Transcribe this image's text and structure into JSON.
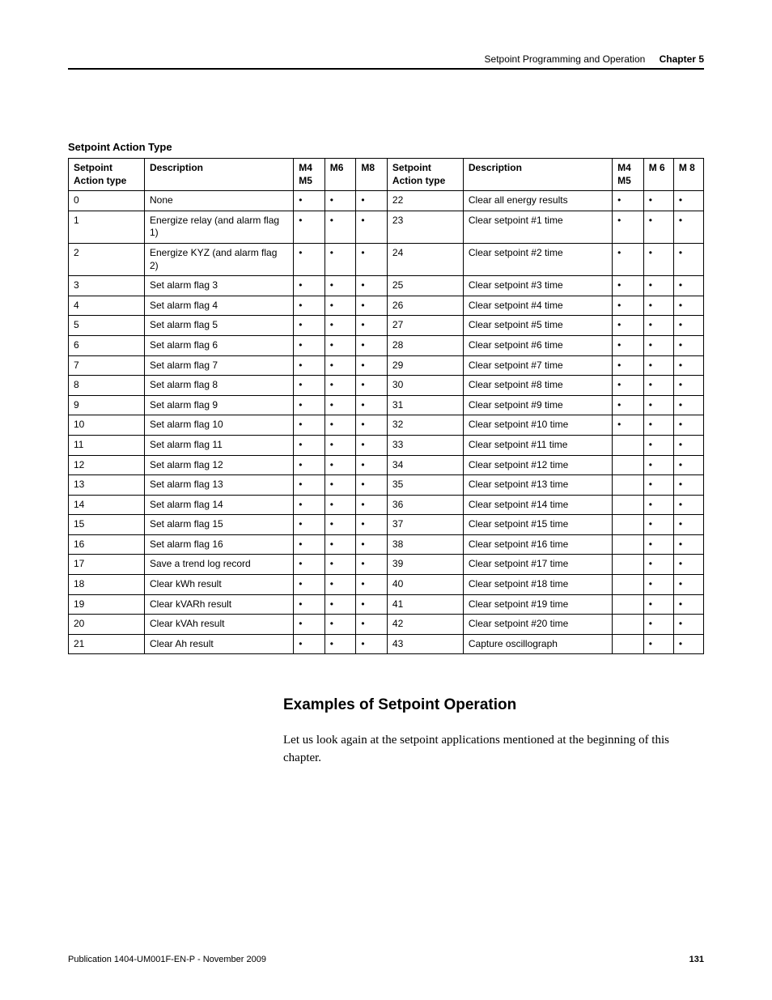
{
  "header": {
    "running_title": "Setpoint Programming and Operation",
    "chapter_label": "Chapter 5"
  },
  "table": {
    "title": "Setpoint Action Type",
    "columns": {
      "code_a": "Setpoint Action type",
      "desc_a": "Description",
      "m4m5_a": "M4 M5",
      "m6_a": "M6",
      "m8_a": "M8",
      "code_b": "Setpoint Action type",
      "desc_b": "Description",
      "m4m5_b": "M4 M5",
      "m6_b": "M 6",
      "m8_b": "M 8"
    },
    "rows": [
      {
        "a_code": "0",
        "a_desc": "None",
        "a_m4m5": "•",
        "a_m6": "•",
        "a_m8": "•",
        "b_code": "22",
        "b_desc": "Clear all energy results",
        "b_m4m5": "•",
        "b_m6": "•",
        "b_m8": "•"
      },
      {
        "a_code": "1",
        "a_desc": "Energize relay (and alarm flag 1)",
        "a_m4m5": "•",
        "a_m6": "•",
        "a_m8": "•",
        "b_code": "23",
        "b_desc": "Clear setpoint #1 time",
        "b_m4m5": "•",
        "b_m6": "•",
        "b_m8": "•"
      },
      {
        "a_code": "2",
        "a_desc": "Energize KYZ (and alarm flag 2)",
        "a_m4m5": "•",
        "a_m6": "•",
        "a_m8": "•",
        "b_code": "24",
        "b_desc": "Clear setpoint #2 time",
        "b_m4m5": "•",
        "b_m6": "•",
        "b_m8": "•"
      },
      {
        "a_code": "3",
        "a_desc": "Set alarm flag 3",
        "a_m4m5": "•",
        "a_m6": "•",
        "a_m8": "•",
        "b_code": "25",
        "b_desc": "Clear setpoint #3 time",
        "b_m4m5": "•",
        "b_m6": "•",
        "b_m8": "•"
      },
      {
        "a_code": "4",
        "a_desc": "Set alarm flag 4",
        "a_m4m5": "•",
        "a_m6": "•",
        "a_m8": "•",
        "b_code": "26",
        "b_desc": "Clear setpoint #4 time",
        "b_m4m5": "•",
        "b_m6": "•",
        "b_m8": "•"
      },
      {
        "a_code": "5",
        "a_desc": "Set alarm flag 5",
        "a_m4m5": "•",
        "a_m6": "•",
        "a_m8": "•",
        "b_code": "27",
        "b_desc": "Clear setpoint #5 time",
        "b_m4m5": "•",
        "b_m6": "•",
        "b_m8": "•"
      },
      {
        "a_code": "6",
        "a_desc": "Set alarm flag 6",
        "a_m4m5": "•",
        "a_m6": "•",
        "a_m8": "•",
        "b_code": "28",
        "b_desc": "Clear setpoint #6 time",
        "b_m4m5": "•",
        "b_m6": "•",
        "b_m8": "•"
      },
      {
        "a_code": "7",
        "a_desc": "Set alarm flag 7",
        "a_m4m5": "•",
        "a_m6": "•",
        "a_m8": "•",
        "b_code": "29",
        "b_desc": "Clear setpoint #7 time",
        "b_m4m5": "•",
        "b_m6": "•",
        "b_m8": "•"
      },
      {
        "a_code": "8",
        "a_desc": "Set alarm flag 8",
        "a_m4m5": "•",
        "a_m6": "•",
        "a_m8": "•",
        "b_code": "30",
        "b_desc": "Clear setpoint #8 time",
        "b_m4m5": "•",
        "b_m6": "•",
        "b_m8": "•"
      },
      {
        "a_code": "9",
        "a_desc": "Set alarm flag 9",
        "a_m4m5": "•",
        "a_m6": "•",
        "a_m8": "•",
        "b_code": "31",
        "b_desc": "Clear setpoint #9 time",
        "b_m4m5": "•",
        "b_m6": "•",
        "b_m8": "•"
      },
      {
        "a_code": "10",
        "a_desc": "Set alarm flag 10",
        "a_m4m5": "•",
        "a_m6": "•",
        "a_m8": "•",
        "b_code": "32",
        "b_desc": "Clear setpoint #10 time",
        "b_m4m5": "•",
        "b_m6": "•",
        "b_m8": "•"
      },
      {
        "a_code": "11",
        "a_desc": "Set alarm flag 11",
        "a_m4m5": "•",
        "a_m6": "•",
        "a_m8": "•",
        "b_code": "33",
        "b_desc": "Clear setpoint #11 time",
        "b_m4m5": "",
        "b_m6": "•",
        "b_m8": "•"
      },
      {
        "a_code": "12",
        "a_desc": "Set alarm flag 12",
        "a_m4m5": "•",
        "a_m6": "•",
        "a_m8": "•",
        "b_code": "34",
        "b_desc": "Clear setpoint #12 time",
        "b_m4m5": "",
        "b_m6": "•",
        "b_m8": "•"
      },
      {
        "a_code": "13",
        "a_desc": "Set alarm flag 13",
        "a_m4m5": "•",
        "a_m6": "•",
        "a_m8": "•",
        "b_code": "35",
        "b_desc": "Clear setpoint #13 time",
        "b_m4m5": "",
        "b_m6": "•",
        "b_m8": "•"
      },
      {
        "a_code": "14",
        "a_desc": "Set alarm flag 14",
        "a_m4m5": "•",
        "a_m6": "•",
        "a_m8": "•",
        "b_code": "36",
        "b_desc": "Clear setpoint #14 time",
        "b_m4m5": "",
        "b_m6": "•",
        "b_m8": "•"
      },
      {
        "a_code": "15",
        "a_desc": "Set alarm flag 15",
        "a_m4m5": "•",
        "a_m6": "•",
        "a_m8": "•",
        "b_code": "37",
        "b_desc": "Clear setpoint #15 time",
        "b_m4m5": "",
        "b_m6": "•",
        "b_m8": "•"
      },
      {
        "a_code": "16",
        "a_desc": "Set alarm flag 16",
        "a_m4m5": "•",
        "a_m6": "•",
        "a_m8": "•",
        "b_code": "38",
        "b_desc": "Clear setpoint #16 time",
        "b_m4m5": "",
        "b_m6": "•",
        "b_m8": "•"
      },
      {
        "a_code": "17",
        "a_desc": "Save a trend log record",
        "a_m4m5": "•",
        "a_m6": "•",
        "a_m8": "•",
        "b_code": "39",
        "b_desc": "Clear setpoint #17 time",
        "b_m4m5": "",
        "b_m6": "•",
        "b_m8": "•"
      },
      {
        "a_code": "18",
        "a_desc": "Clear kWh result",
        "a_m4m5": "•",
        "a_m6": "•",
        "a_m8": "•",
        "b_code": "40",
        "b_desc": "Clear setpoint #18 time",
        "b_m4m5": "",
        "b_m6": "•",
        "b_m8": "•"
      },
      {
        "a_code": "19",
        "a_desc": "Clear kVARh result",
        "a_m4m5": "•",
        "a_m6": "•",
        "a_m8": "•",
        "b_code": "41",
        "b_desc": "Clear setpoint #19 time",
        "b_m4m5": "",
        "b_m6": "•",
        "b_m8": "•"
      },
      {
        "a_code": "20",
        "a_desc": "Clear kVAh result",
        "a_m4m5": "•",
        "a_m6": "•",
        "a_m8": "•",
        "b_code": "42",
        "b_desc": "Clear setpoint #20 time",
        "b_m4m5": "",
        "b_m6": "•",
        "b_m8": "•"
      },
      {
        "a_code": "21",
        "a_desc": "Clear Ah result",
        "a_m4m5": "•",
        "a_m6": "•",
        "a_m8": "•",
        "b_code": "43",
        "b_desc": "Capture oscillograph",
        "b_m4m5": "",
        "b_m6": "•",
        "b_m8": "•"
      }
    ]
  },
  "section": {
    "heading": "Examples of Setpoint Operation",
    "paragraph": "Let us look again at the setpoint applications mentioned at the beginning of this chapter."
  },
  "footer": {
    "pub": "Publication 1404-UM001F-EN-P - November 2009",
    "page": "131"
  }
}
